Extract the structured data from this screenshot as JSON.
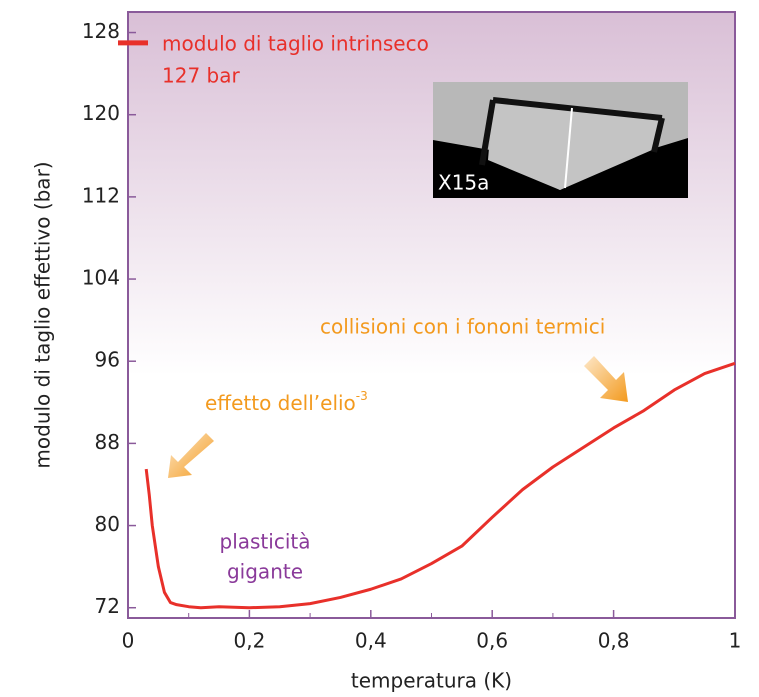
{
  "chart_data": {
    "type": "line",
    "ylabel": "modulo di taglio effettivo (bar)",
    "xlabel": "temperatura (K)",
    "x": [
      0.03,
      0.035,
      0.04,
      0.05,
      0.06,
      0.07,
      0.08,
      0.1,
      0.12,
      0.15,
      0.2,
      0.25,
      0.3,
      0.35,
      0.4,
      0.45,
      0.5,
      0.55,
      0.6,
      0.65,
      0.7,
      0.75,
      0.8,
      0.85,
      0.9,
      0.95,
      1.0
    ],
    "values": [
      85.5,
      83,
      80,
      76,
      73.5,
      72.5,
      72.3,
      72.1,
      72,
      72.1,
      72,
      72.1,
      72.4,
      73,
      73.8,
      74.8,
      76.3,
      78,
      80.8,
      83.5,
      85.7,
      87.6,
      89.5,
      91.2,
      93.2,
      94.8,
      95.8
    ],
    "color": "#e8302a",
    "xlim": [
      0,
      1
    ],
    "ylim": [
      71,
      130
    ],
    "xticks": [
      0,
      {
        "value": 0.2,
        "label": "0,2"
      },
      {
        "value": 0.4,
        "label": "0,4"
      },
      {
        "value": 0.6,
        "label": "0,6"
      },
      {
        "value": 0.8,
        "label": "0,8"
      },
      1
    ],
    "yticks": [
      72,
      80,
      88,
      96,
      104,
      112,
      120,
      128
    ],
    "intrinsic": {
      "value": 127,
      "label": "127 bar",
      "text": "modulo di taglio intrinseco"
    },
    "annotations": {
      "helium": "effetto dell’elio",
      "helium_sup": "-3",
      "phonons": "collisioni con i fononi termici",
      "plastic_1": "plasticità",
      "plastic_2": "gigante",
      "inset": "X15a"
    }
  }
}
